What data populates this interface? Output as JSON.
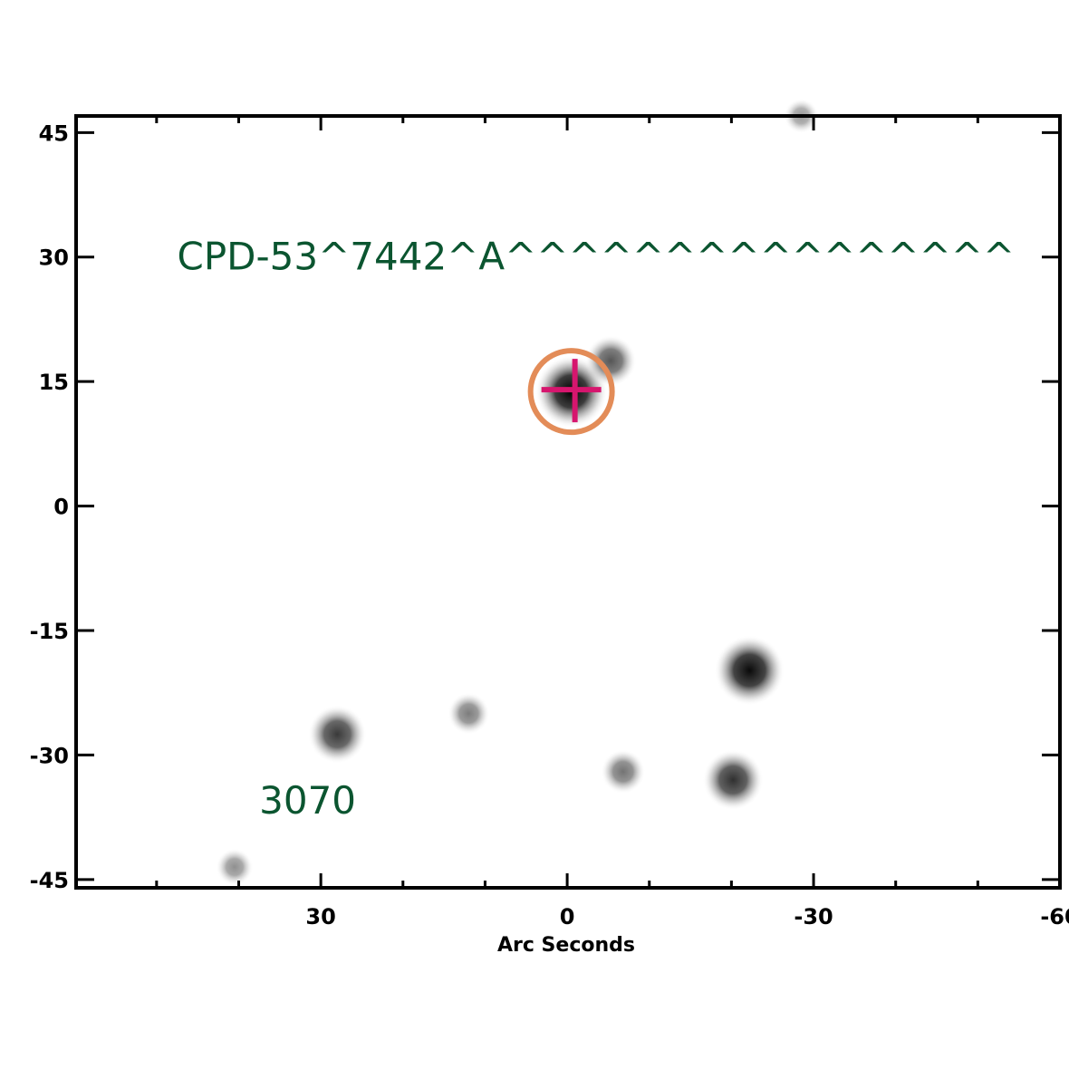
{
  "chart_data": {
    "type": "scatter",
    "title": "",
    "xlabel": "Arc Seconds",
    "ylabel": "",
    "xlim": [
      59.8,
      -60
    ],
    "ylim": [
      -46,
      47
    ],
    "x_ticks": [
      30,
      0,
      -30,
      -60
    ],
    "x_tick_labels": [
      "30",
      "0",
      "-30",
      "-60"
    ],
    "y_ticks": [
      45,
      30,
      15,
      0,
      -15,
      -30,
      -45
    ],
    "y_tick_labels": [
      "45",
      "30",
      "15",
      "0",
      "-15",
      "-30",
      "-45"
    ],
    "grid": false,
    "annotations": [
      {
        "text": "CPD-53^7442^A^^^^^^^^^^^^^^^^",
        "x": 47.5,
        "y": 30
      },
      {
        "text": "3070",
        "x": 37.5,
        "y": -35.5
      }
    ],
    "target": {
      "x": -0.5,
      "y": 13.8,
      "marker": "plus-in-circle"
    },
    "sources": [
      {
        "x": -0.5,
        "y": 13.8,
        "brightness": 1.0
      },
      {
        "x": -5.3,
        "y": 17.5,
        "brightness": 0.55
      },
      {
        "x": -22.2,
        "y": -19.8,
        "brightness": 0.95
      },
      {
        "x": -20.2,
        "y": -33.0,
        "brightness": 0.75
      },
      {
        "x": 28.0,
        "y": -27.5,
        "brightness": 0.7
      },
      {
        "x": 12.0,
        "y": -25.0,
        "brightness": 0.35
      },
      {
        "x": -6.8,
        "y": -32.0,
        "brightness": 0.4
      },
      {
        "x": 40.5,
        "y": -43.5,
        "brightness": 0.25
      },
      {
        "x": -28.5,
        "y": 47.0,
        "brightness": 0.2
      }
    ]
  },
  "colors": {
    "annotation": "#0b5530",
    "target_circle": "#e38c58",
    "target_cross": "#d6166e",
    "axis": "#000000"
  }
}
